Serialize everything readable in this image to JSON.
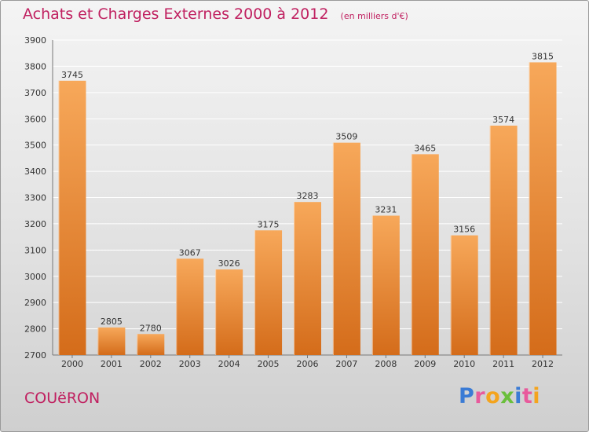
{
  "title": "Achats et Charges Externes 2000 à 2012",
  "unit_note": "(en milliers d'€)",
  "commune": "COUëRON",
  "brand": {
    "letters": [
      "P",
      "r",
      "o",
      "x",
      "i",
      "t",
      "i"
    ],
    "colors": [
      "#3a7bd5",
      "#e85a9c",
      "#f4a41e",
      "#6abf3b",
      "#3a7bd5",
      "#e85a9c",
      "#f4a41e"
    ]
  },
  "colors": {
    "bar_top": "#f7a85a",
    "bar_bottom": "#d46c1a",
    "title": "#c02060"
  },
  "chart_data": {
    "type": "bar",
    "categories": [
      "2000",
      "2001",
      "2002",
      "2003",
      "2004",
      "2005",
      "2006",
      "2007",
      "2008",
      "2009",
      "2010",
      "2011",
      "2012"
    ],
    "values": [
      3745,
      2805,
      2780,
      3067,
      3026,
      3175,
      3283,
      3509,
      3231,
      3465,
      3156,
      3574,
      3815
    ],
    "ylim": [
      2700,
      3900
    ],
    "yticks": [
      2700,
      2800,
      2900,
      3000,
      3100,
      3200,
      3300,
      3400,
      3500,
      3600,
      3700,
      3800,
      3900
    ],
    "grid": true,
    "legend": "none"
  }
}
